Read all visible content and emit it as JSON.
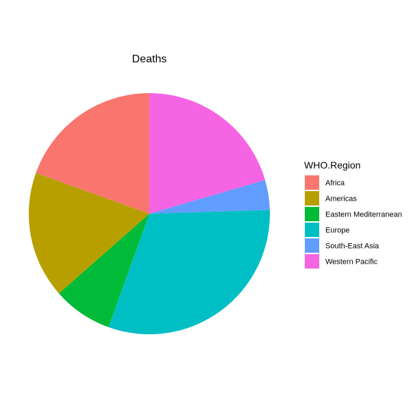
{
  "chart_data": {
    "type": "pie",
    "title": "Deaths",
    "legend": {
      "title": "WHO.Region",
      "position": "right"
    },
    "start_angle_deg": 0,
    "direction": "clockwise",
    "slices": [
      {
        "label": "Western Pacific",
        "value": 20.5,
        "color": "#F564E3"
      },
      {
        "label": "South-East Asia",
        "value": 4.0,
        "color": "#619CFF"
      },
      {
        "label": "Europe",
        "value": 31.0,
        "color": "#00BFC4"
      },
      {
        "label": "Eastern Mediterranean",
        "value": 8.0,
        "color": "#00BA38"
      },
      {
        "label": "Americas",
        "value": 17.0,
        "color": "#B79F00"
      },
      {
        "label": "Africa",
        "value": 19.5,
        "color": "#F8766D"
      }
    ],
    "legend_order": [
      "Africa",
      "Americas",
      "Eastern Mediterranean",
      "Europe",
      "South-East Asia",
      "Western Pacific"
    ]
  }
}
